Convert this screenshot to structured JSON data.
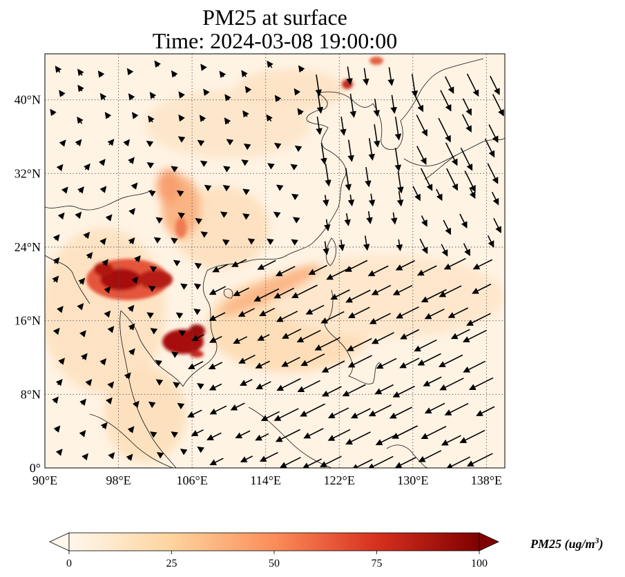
{
  "title": {
    "line1": "PM25 at surface",
    "line2": "Time: 2024-03-08 19:00:00"
  },
  "axes": {
    "x_ticks": [
      "90°E",
      "98°E",
      "106°E",
      "114°E",
      "122°E",
      "130°E",
      "138°E"
    ],
    "y_ticks": [
      "0°",
      "8°N",
      "16°N",
      "24°N",
      "32°N",
      "40°N"
    ],
    "lon_range": [
      90,
      140
    ],
    "lat_range": [
      0,
      45
    ],
    "gridlines": "dotted"
  },
  "colorbar": {
    "label": "PM25 (ug/m",
    "label_sup": "3",
    "label_end": ")",
    "ticks": [
      "0",
      "25",
      "50",
      "75",
      "100"
    ],
    "range": [
      0,
      100
    ],
    "extend": "both",
    "colormap": "OrRd",
    "colors": [
      "#fff7ec",
      "#fdd49e",
      "#fc8d59",
      "#d7301f",
      "#7f0000"
    ]
  },
  "map": {
    "field": "PM25",
    "hotspots": [
      {
        "name": "northern Laos / Myanmar / Thailand",
        "lon": 101,
        "lat": 20,
        "value": 100
      },
      {
        "name": "Cambodia",
        "lon": 105,
        "lat": 14,
        "value": 100
      },
      {
        "name": "Sichuan / Chongqing",
        "lon": 104,
        "lat": 29,
        "value": 45
      },
      {
        "name": "Yellow Sea coast",
        "lon": 124,
        "lat": 42,
        "value": 70
      }
    ],
    "wind_arrows": "black quiver vectors (surface wind)"
  }
}
